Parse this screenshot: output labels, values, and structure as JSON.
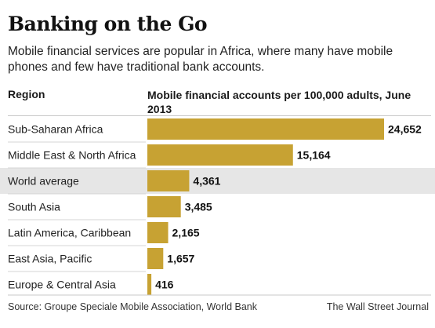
{
  "header": {
    "title": "Banking on the Go",
    "subtitle": "Mobile financial services are popular in Africa, where many have mobile phones and few have traditional bank accounts.",
    "region_header": "Region",
    "metric_header": "Mobile financial accounts per 100,000 adults, June 2013"
  },
  "footer": {
    "source": "Source: Groupe Speciale Mobile Association, World Bank",
    "credit": "The Wall Street Journal"
  },
  "colors": {
    "bar": "#c7a233",
    "highlight_row": "#e6e6e6",
    "text": "#1a1a1a"
  },
  "chart_data": {
    "type": "bar",
    "orientation": "horizontal",
    "title": "Banking on the Go",
    "subtitle": "Mobile financial services are popular in Africa, where many have mobile phones and few have traditional bank accounts.",
    "xlabel": "Mobile financial accounts per 100,000 adults, June 2013",
    "ylabel": "Region",
    "categories": [
      "Sub-Saharan Africa",
      "Middle East & North Africa",
      "World average",
      "South Asia",
      "Latin America, Caribbean",
      "East Asia, Pacific",
      "Europe & Central Asia"
    ],
    "values": [
      24652,
      15164,
      4361,
      3485,
      2165,
      1657,
      416
    ],
    "value_labels": [
      "24,652",
      "15,164",
      "4,361",
      "3,485",
      "2,165",
      "1,657",
      "416"
    ],
    "highlighted_category": "World average",
    "xlim": [
      0,
      24652
    ],
    "grid": false,
    "legend": "none"
  }
}
